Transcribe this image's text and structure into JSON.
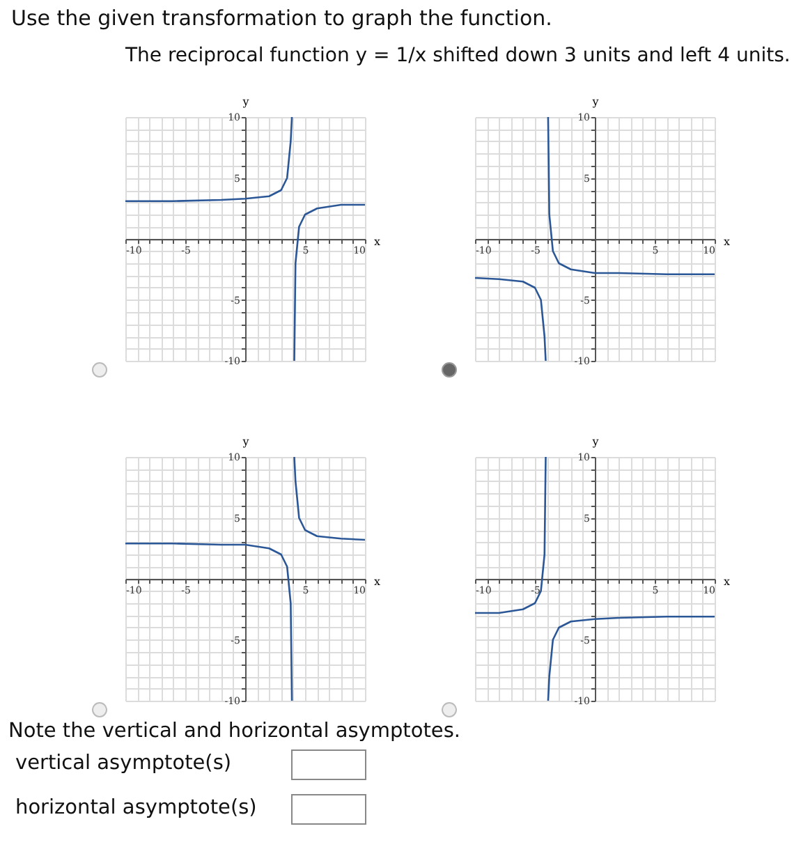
{
  "chart_data": [
    {
      "type": "line",
      "title": "Use the given transformation to graph the function.",
      "subtitle": "The reciprocal function y = 1/x shifted down 3 units and left 4 units.",
      "xlabel": "x",
      "ylabel": "y",
      "x": [
        -10,
        -6,
        -2,
        0,
        2,
        3,
        3.5,
        3.8,
        3.9,
        4,
        4.1,
        4.2,
        4.5,
        5,
        6,
        8,
        10
      ],
      "series": [
        {
          "color": "#2b5797",
          "values": [
            3.1,
            3.1,
            3.2,
            3.3,
            3.5,
            4,
            5,
            8,
            10,
            null,
            -10,
            -2,
            1,
            2,
            2.5,
            2.8,
            2.8
          ]
        }
      ],
      "xlim": [
        -10,
        10
      ],
      "ylim": [
        -10,
        10
      ],
      "xticks": [
        -10,
        {
          "value": -9,
          "label": null
        },
        {
          "value": -8,
          "label": null
        },
        {
          "value": -7,
          "label": null
        },
        {
          "value": -6,
          "label": null
        },
        -5,
        {
          "value": -4,
          "label": null
        },
        {
          "value": -3,
          "label": null
        },
        {
          "value": -2,
          "label": null
        },
        {
          "value": -1,
          "label": null
        },
        {
          "value": 0,
          "label": null
        },
        {
          "value": 1,
          "label": null
        },
        {
          "value": 2,
          "label": null
        },
        {
          "value": 3,
          "label": null
        },
        {
          "value": 4,
          "label": null
        },
        5,
        {
          "value": 6,
          "label": null
        },
        {
          "value": 7,
          "label": null
        },
        {
          "value": 8,
          "label": null
        },
        {
          "value": 9,
          "label": null
        },
        10
      ],
      "yticks": [
        -10,
        {
          "value": -9,
          "label": null
        },
        {
          "value": -8,
          "label": null
        },
        {
          "value": -7,
          "label": null
        },
        {
          "value": -6,
          "label": null
        },
        -5,
        {
          "value": -4,
          "label": null
        },
        {
          "value": -3,
          "label": null
        },
        {
          "value": -2,
          "label": null
        },
        {
          "value": -1,
          "label": null
        },
        {
          "value": 0,
          "label": null
        },
        {
          "value": 1,
          "label": null
        },
        {
          "value": 2,
          "label": null
        },
        {
          "value": 3,
          "label": null
        },
        {
          "value": 4,
          "label": null
        },
        5,
        {
          "value": 6,
          "label": null
        },
        {
          "value": 7,
          "label": null
        },
        {
          "value": 8,
          "label": null
        },
        {
          "value": 9,
          "label": null
        },
        10
      ],
      "grid": true,
      "marker": "none",
      "line_style": "solid"
    },
    {
      "type": "line",
      "xlabel": "x",
      "ylabel": "y",
      "x": [
        -10,
        -8,
        -6,
        -5,
        -4.5,
        -4.2,
        -4.1,
        -4,
        -3.9,
        -3.8,
        -3.5,
        -3,
        -2,
        0,
        2,
        6,
        10
      ],
      "series": [
        {
          "color": "#2b5797",
          "values": [
            -3.2,
            -3.3,
            -3.5,
            -4,
            -5,
            -8,
            -10,
            null,
            10,
            2,
            -1,
            -2,
            -2.5,
            -2.8,
            -2.8,
            -2.9,
            -2.9
          ]
        }
      ],
      "xlim": [
        -10,
        10
      ],
      "ylim": [
        -10,
        10
      ],
      "xticks": [
        -10,
        {
          "value": -9,
          "label": null
        },
        {
          "value": -8,
          "label": null
        },
        {
          "value": -7,
          "label": null
        },
        {
          "value": -6,
          "label": null
        },
        -5,
        {
          "value": -4,
          "label": null
        },
        {
          "value": -3,
          "label": null
        },
        {
          "value": -2,
          "label": null
        },
        {
          "value": -1,
          "label": null
        },
        {
          "value": 0,
          "label": null
        },
        {
          "value": 1,
          "label": null
        },
        {
          "value": 2,
          "label": null
        },
        {
          "value": 3,
          "label": null
        },
        {
          "value": 4,
          "label": null
        },
        5,
        {
          "value": 6,
          "label": null
        },
        {
          "value": 7,
          "label": null
        },
        {
          "value": 8,
          "label": null
        },
        {
          "value": 9,
          "label": null
        },
        10
      ],
      "yticks": [
        -10,
        {
          "value": -9,
          "label": null
        },
        {
          "value": -8,
          "label": null
        },
        {
          "value": -7,
          "label": null
        },
        {
          "value": -6,
          "label": null
        },
        -5,
        {
          "value": -4,
          "label": null
        },
        {
          "value": -3,
          "label": null
        },
        {
          "value": -2,
          "label": null
        },
        {
          "value": -1,
          "label": null
        },
        {
          "value": 0,
          "label": null
        },
        {
          "value": 1,
          "label": null
        },
        {
          "value": 2,
          "label": null
        },
        {
          "value": 3,
          "label": null
        },
        {
          "value": 4,
          "label": null
        },
        5,
        {
          "value": 6,
          "label": null
        },
        {
          "value": 7,
          "label": null
        },
        {
          "value": 8,
          "label": null
        },
        {
          "value": 9,
          "label": null
        },
        10
      ],
      "grid": true,
      "marker": "none",
      "line_style": "solid"
    },
    {
      "type": "line",
      "xlabel": "x",
      "ylabel": "y",
      "x": [
        -10,
        -6,
        -2,
        0,
        2,
        3,
        3.5,
        3.8,
        3.9,
        4,
        4.1,
        4.2,
        4.5,
        5,
        6,
        8,
        10
      ],
      "series": [
        {
          "color": "#2b5797",
          "values": [
            2.9,
            2.9,
            2.8,
            2.8,
            2.5,
            2,
            1,
            -2,
            -10,
            null,
            10,
            8,
            5,
            4,
            3.5,
            3.3,
            3.2
          ]
        }
      ],
      "xlim": [
        -10,
        10
      ],
      "ylim": [
        -10,
        10
      ],
      "xticks": [
        -10,
        {
          "value": -9,
          "label": null
        },
        {
          "value": -8,
          "label": null
        },
        {
          "value": -7,
          "label": null
        },
        {
          "value": -6,
          "label": null
        },
        -5,
        {
          "value": -4,
          "label": null
        },
        {
          "value": -3,
          "label": null
        },
        {
          "value": -2,
          "label": null
        },
        {
          "value": -1,
          "label": null
        },
        {
          "value": 0,
          "label": null
        },
        {
          "value": 1,
          "label": null
        },
        {
          "value": 2,
          "label": null
        },
        {
          "value": 3,
          "label": null
        },
        {
          "value": 4,
          "label": null
        },
        5,
        {
          "value": 6,
          "label": null
        },
        {
          "value": 7,
          "label": null
        },
        {
          "value": 8,
          "label": null
        },
        {
          "value": 9,
          "label": null
        },
        10
      ],
      "yticks": [
        -10,
        {
          "value": -9,
          "label": null
        },
        {
          "value": -8,
          "label": null
        },
        {
          "value": -7,
          "label": null
        },
        {
          "value": -6,
          "label": null
        },
        -5,
        {
          "value": -4,
          "label": null
        },
        {
          "value": -3,
          "label": null
        },
        {
          "value": -2,
          "label": null
        },
        {
          "value": -1,
          "label": null
        },
        {
          "value": 0,
          "label": null
        },
        {
          "value": 1,
          "label": null
        },
        {
          "value": 2,
          "label": null
        },
        {
          "value": 3,
          "label": null
        },
        {
          "value": 4,
          "label": null
        },
        5,
        {
          "value": 6,
          "label": null
        },
        {
          "value": 7,
          "label": null
        },
        {
          "value": 8,
          "label": null
        },
        {
          "value": 9,
          "label": null
        },
        10
      ],
      "grid": true,
      "marker": "none",
      "line_style": "solid"
    },
    {
      "type": "line",
      "xlabel": "x",
      "ylabel": "y",
      "x": [
        -10,
        -8,
        -6,
        -5,
        -4.5,
        -4.2,
        -4.1,
        -4,
        -3.9,
        -3.8,
        -3.5,
        -3,
        -2,
        0,
        2,
        6,
        10
      ],
      "series": [
        {
          "color": "#2b5797",
          "values": [
            -2.8,
            -2.8,
            -2.5,
            -2,
            -1,
            2,
            10,
            null,
            -10,
            -8,
            -5,
            -4,
            -3.5,
            -3.3,
            -3.2,
            -3.1,
            -3.1
          ]
        }
      ],
      "xlim": [
        -10,
        10
      ],
      "ylim": [
        -10,
        10
      ],
      "xticks": [
        -10,
        {
          "value": -9,
          "label": null
        },
        {
          "value": -8,
          "label": null
        },
        {
          "value": -7,
          "label": null
        },
        {
          "value": -6,
          "label": null
        },
        -5,
        {
          "value": -4,
          "label": null
        },
        {
          "value": -3,
          "label": null
        },
        {
          "value": -2,
          "label": null
        },
        {
          "value": -1,
          "label": null
        },
        {
          "value": 0,
          "label": null
        },
        {
          "value": 1,
          "label": null
        },
        {
          "value": 2,
          "label": null
        },
        {
          "value": 3,
          "label": null
        },
        {
          "value": 4,
          "label": null
        },
        5,
        {
          "value": 6,
          "label": null
        },
        {
          "value": 7,
          "label": null
        },
        {
          "value": 8,
          "label": null
        },
        {
          "value": 9,
          "label": null
        },
        10
      ],
      "yticks": [
        -10,
        {
          "value": -9,
          "label": null
        },
        {
          "value": -8,
          "label": null
        },
        {
          "value": -7,
          "label": null
        },
        {
          "value": -6,
          "label": null
        },
        -5,
        {
          "value": -4,
          "label": null
        },
        {
          "value": -3,
          "label": null
        },
        {
          "value": -2,
          "label": null
        },
        {
          "value": -1,
          "label": null
        },
        {
          "value": 0,
          "label": null
        },
        {
          "value": 1,
          "label": null
        },
        {
          "value": 2,
          "label": null
        },
        {
          "value": 3,
          "label": null
        },
        {
          "value": 4,
          "label": null
        },
        5,
        {
          "value": 6,
          "label": null
        },
        {
          "value": 7,
          "label": null
        },
        {
          "value": 8,
          "label": null
        },
        {
          "value": 9,
          "label": null
        },
        10
      ],
      "grid": true,
      "marker": "none",
      "line_style": "solid",
      "annotations": [
        "Note the vertical and horizontal asymptotes.",
        "vertical asymptote(s)",
        "horizontal asymptote(s)"
      ]
    }
  ]
}
